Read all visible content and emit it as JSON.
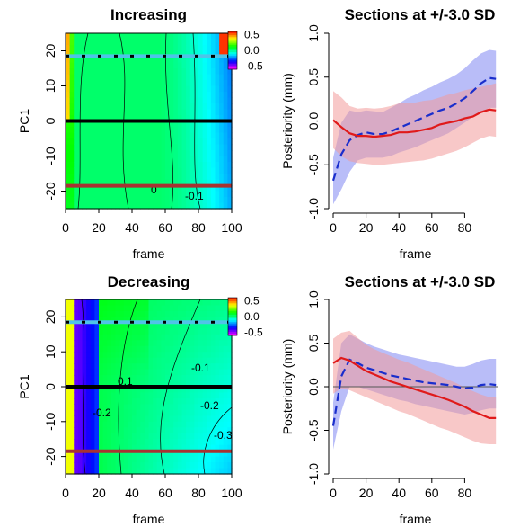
{
  "chart_data": [
    {
      "type": "heatmap",
      "title": "Increasing",
      "xlabel": "frame",
      "ylabel": "PC1",
      "xlim": [
        0,
        100
      ],
      "ylim": [
        -25,
        25
      ],
      "xticks": [
        "0",
        "20",
        "40",
        "60",
        "80",
        "100"
      ],
      "yticks": [
        "-20",
        "-10",
        "0",
        "10",
        "20"
      ],
      "colorbar": {
        "ticks": [
          "0.5",
          "0.0",
          "-0.5"
        ],
        "range": [
          -0.6,
          0.6
        ]
      },
      "horizontal_lines": [
        {
          "y": 18.5,
          "color": "#4fc3e8",
          "style": "dashed-black"
        },
        {
          "y": 0,
          "color": "#000000"
        },
        {
          "y": -18.5,
          "color": "#a83232"
        }
      ],
      "contour_labels": [
        "0",
        "-0.1"
      ],
      "trend": "increasing"
    },
    {
      "type": "line",
      "title": "Sections at +/-3.0 SD",
      "xlabel": "frame",
      "ylabel": "Posteriority (mm)",
      "xlim": [
        0,
        100
      ],
      "ylim": [
        -1.0,
        1.0
      ],
      "xticks": [
        "0",
        "20",
        "40",
        "60",
        "80"
      ],
      "yticks": [
        "-1.0",
        "-0.5",
        "0.0",
        "0.5",
        "1.0"
      ],
      "x": [
        0,
        5,
        10,
        15,
        20,
        25,
        30,
        35,
        40,
        45,
        50,
        55,
        60,
        65,
        70,
        75,
        80,
        85,
        90,
        95,
        99
      ],
      "series": [
        {
          "color": "#1a2ecc",
          "dash": "dashed",
          "band_color": "#7f86f2",
          "values": [
            -0.68,
            -0.38,
            -0.22,
            -0.16,
            -0.13,
            -0.15,
            -0.15,
            -0.12,
            -0.08,
            -0.04,
            0.0,
            0.04,
            0.08,
            0.12,
            0.15,
            0.2,
            0.26,
            0.34,
            0.43,
            0.49,
            0.48
          ],
          "lower": [
            -0.95,
            -0.78,
            -0.58,
            -0.45,
            -0.42,
            -0.42,
            -0.42,
            -0.4,
            -0.36,
            -0.33,
            -0.3,
            -0.26,
            -0.22,
            -0.18,
            -0.14,
            -0.08,
            -0.02,
            0.05,
            0.1,
            0.15,
            0.15
          ],
          "upper": [
            -0.42,
            -0.02,
            0.12,
            0.1,
            0.12,
            0.11,
            0.1,
            0.15,
            0.2,
            0.26,
            0.3,
            0.35,
            0.39,
            0.44,
            0.48,
            0.53,
            0.6,
            0.69,
            0.77,
            0.81,
            0.8
          ]
        },
        {
          "color": "#e01a1a",
          "dash": "solid",
          "band_color": "#f29a9a",
          "values": [
            0.01,
            -0.07,
            -0.14,
            -0.17,
            -0.17,
            -0.18,
            -0.17,
            -0.16,
            -0.13,
            -0.13,
            -0.12,
            -0.1,
            -0.08,
            -0.04,
            -0.02,
            0.0,
            0.03,
            0.05,
            0.1,
            0.13,
            0.12
          ],
          "lower": [
            -0.31,
            -0.4,
            -0.46,
            -0.48,
            -0.49,
            -0.5,
            -0.5,
            -0.49,
            -0.48,
            -0.47,
            -0.46,
            -0.45,
            -0.43,
            -0.4,
            -0.37,
            -0.34,
            -0.3,
            -0.25,
            -0.2,
            -0.17,
            -0.18
          ],
          "upper": [
            0.34,
            0.27,
            0.17,
            0.14,
            0.15,
            0.14,
            0.15,
            0.17,
            0.2,
            0.2,
            0.21,
            0.23,
            0.24,
            0.27,
            0.3,
            0.32,
            0.35,
            0.37,
            0.39,
            0.41,
            0.43
          ]
        }
      ]
    },
    {
      "type": "heatmap",
      "title": "Decreasing",
      "xlabel": "frame",
      "ylabel": "PC1",
      "xlim": [
        0,
        100
      ],
      "ylim": [
        -25,
        25
      ],
      "xticks": [
        "0",
        "20",
        "40",
        "60",
        "80",
        "100"
      ],
      "yticks": [
        "-20",
        "-10",
        "0",
        "10",
        "20"
      ],
      "colorbar": {
        "ticks": [
          "0.5",
          "0.0",
          "-0.5"
        ],
        "range": [
          -0.6,
          0.6
        ]
      },
      "horizontal_lines": [
        {
          "y": 18.5,
          "color": "#4fc3e8",
          "style": "dashed-black"
        },
        {
          "y": 0,
          "color": "#000000"
        },
        {
          "y": -18.5,
          "color": "#a83232"
        }
      ],
      "contour_labels": [
        "0.1",
        "-0.1",
        "-0.2",
        "-0.2",
        "-0.3"
      ],
      "trend": "decreasing"
    },
    {
      "type": "line",
      "title": "Sections at +/-3.0 SD",
      "xlabel": "frame",
      "ylabel": "Posteriority (mm)",
      "xlim": [
        0,
        100
      ],
      "ylim": [
        -1.0,
        1.0
      ],
      "xticks": [
        "0",
        "20",
        "40",
        "60",
        "80"
      ],
      "yticks": [
        "-1.0",
        "-0.5",
        "0.0",
        "0.5",
        "1.0"
      ],
      "x": [
        0,
        5,
        10,
        15,
        20,
        25,
        30,
        35,
        40,
        45,
        50,
        55,
        60,
        65,
        70,
        75,
        80,
        85,
        90,
        95,
        99
      ],
      "series": [
        {
          "color": "#1a2ecc",
          "dash": "dashed",
          "band_color": "#7f86f2",
          "values": [
            -0.45,
            0.12,
            0.31,
            0.27,
            0.22,
            0.19,
            0.16,
            0.13,
            0.11,
            0.09,
            0.07,
            0.05,
            0.04,
            0.03,
            0.02,
            0.0,
            -0.02,
            -0.01,
            0.02,
            0.03,
            0.02
          ],
          "lower": [
            -0.72,
            -0.28,
            0.0,
            0.0,
            -0.03,
            -0.06,
            -0.09,
            -0.12,
            -0.15,
            -0.17,
            -0.2,
            -0.22,
            -0.24,
            -0.26,
            -0.28,
            -0.3,
            -0.32,
            -0.3,
            -0.27,
            -0.25,
            -0.25
          ],
          "upper": [
            -0.18,
            0.5,
            0.6,
            0.55,
            0.5,
            0.46,
            0.43,
            0.4,
            0.37,
            0.35,
            0.33,
            0.31,
            0.29,
            0.27,
            0.25,
            0.23,
            0.23,
            0.26,
            0.3,
            0.32,
            0.32
          ]
        },
        {
          "color": "#e01a1a",
          "dash": "solid",
          "band_color": "#f29a9a",
          "values": [
            0.27,
            0.33,
            0.3,
            0.24,
            0.18,
            0.14,
            0.1,
            0.06,
            0.03,
            0.0,
            -0.03,
            -0.06,
            -0.09,
            -0.12,
            -0.15,
            -0.19,
            -0.23,
            -0.28,
            -0.32,
            -0.36,
            -0.36
          ],
          "lower": [
            -0.08,
            -0.02,
            -0.04,
            -0.08,
            -0.12,
            -0.16,
            -0.2,
            -0.24,
            -0.28,
            -0.31,
            -0.35,
            -0.39,
            -0.43,
            -0.47,
            -0.5,
            -0.54,
            -0.58,
            -0.62,
            -0.65,
            -0.66,
            -0.66
          ],
          "upper": [
            0.55,
            0.62,
            0.64,
            0.56,
            0.48,
            0.43,
            0.39,
            0.35,
            0.31,
            0.28,
            0.24,
            0.2,
            0.16,
            0.12,
            0.08,
            0.04,
            -0.01,
            -0.05,
            -0.09,
            -0.12,
            -0.12
          ]
        }
      ]
    }
  ]
}
